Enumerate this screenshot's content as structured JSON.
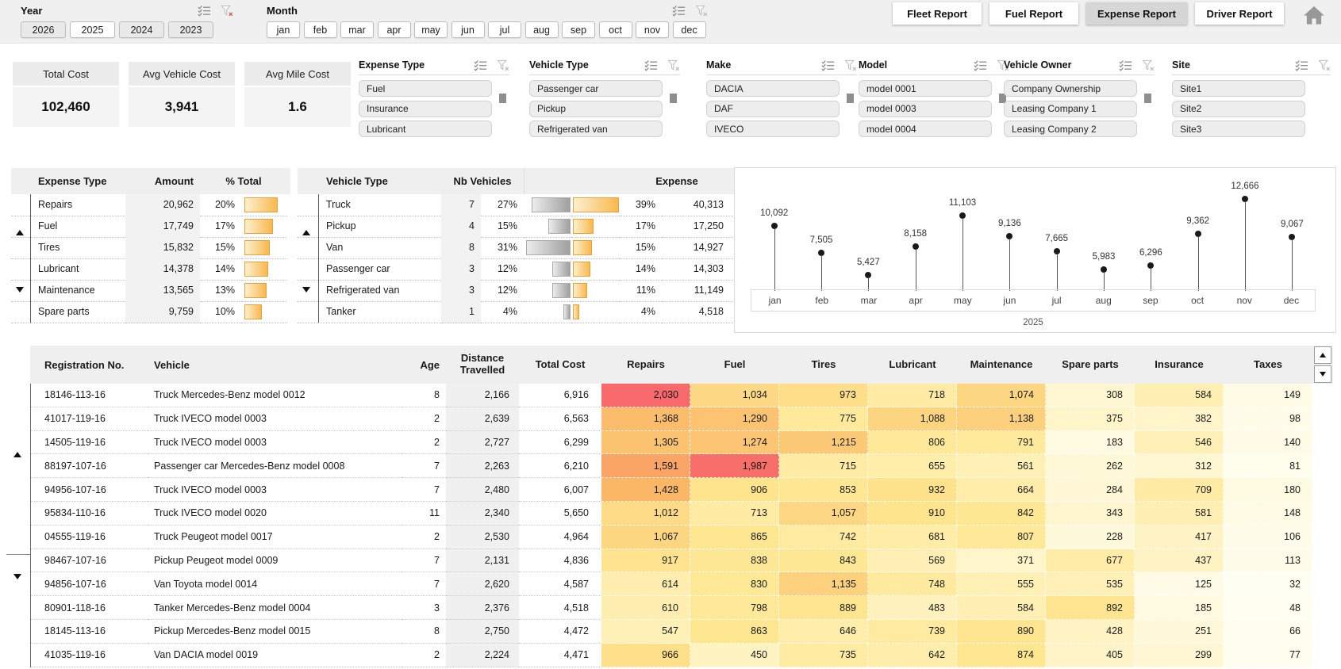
{
  "topbar": {
    "year": {
      "label": "Year",
      "options": [
        {
          "label": "2026",
          "selected": false
        },
        {
          "label": "2025",
          "selected": true
        },
        {
          "label": "2024",
          "selected": false
        },
        {
          "label": "2023",
          "selected": false
        }
      ]
    },
    "month": {
      "label": "Month",
      "options": [
        "jan",
        "feb",
        "mar",
        "apr",
        "may",
        "jun",
        "jul",
        "aug",
        "sep",
        "oct",
        "nov",
        "dec"
      ]
    },
    "tabs": [
      {
        "label": "Fleet Report",
        "active": false
      },
      {
        "label": "Fuel Report",
        "active": false
      },
      {
        "label": "Expense Report",
        "active": true
      },
      {
        "label": "Driver Report",
        "active": false
      }
    ]
  },
  "kpis": [
    {
      "title": "Total Cost",
      "value": "102,460"
    },
    {
      "title": "Avg Vehicle Cost",
      "value": "3,941"
    },
    {
      "title": "Avg Mile Cost",
      "value": "1.6"
    }
  ],
  "slicers": [
    {
      "title": "Expense Type",
      "items": [
        "Fuel",
        "Insurance",
        "Lubricant"
      ]
    },
    {
      "title": "Vehicle Type",
      "items": [
        "Passenger car",
        "Pickup",
        "Refrigerated van"
      ]
    },
    {
      "title": "Make",
      "items": [
        "DACIA",
        "DAF",
        "IVECO"
      ]
    },
    {
      "title": "Model",
      "items": [
        "model 0001",
        "model 0003",
        "model 0004"
      ]
    },
    {
      "title": "Vehicle Owner",
      "items": [
        "Company Ownership",
        "Leasing Company 1",
        "Leasing Company 2"
      ]
    },
    {
      "title": "Site",
      "items": [
        "Site1",
        "Site2",
        "Site3"
      ]
    }
  ],
  "expense_table": {
    "headers": {
      "type": "Expense Type",
      "amount": "Amount",
      "pct": "% Total"
    },
    "rows": [
      {
        "type": "Repairs",
        "amount": "20,962",
        "pct_label": "20%",
        "pct": 20
      },
      {
        "type": "Fuel",
        "amount": "17,749",
        "pct_label": "17%",
        "pct": 17
      },
      {
        "type": "Tires",
        "amount": "15,832",
        "pct_label": "15%",
        "pct": 15
      },
      {
        "type": "Lubricant",
        "amount": "14,378",
        "pct_label": "14%",
        "pct": 14
      },
      {
        "type": "Maintenance",
        "amount": "13,565",
        "pct_label": "13%",
        "pct": 13
      },
      {
        "type": "Spare parts",
        "amount": "9,759",
        "pct_label": "10%",
        "pct": 10
      }
    ]
  },
  "vehicle_table": {
    "headers": {
      "type": "Vehicle Type",
      "nb": "Nb Vehicles",
      "expense": "Expense"
    },
    "rows": [
      {
        "type": "Truck",
        "nb": "7",
        "nb_pct_label": "27%",
        "nb_pct": 27,
        "exp_pct_label": "39%",
        "exp_pct": 39,
        "expense": "40,313"
      },
      {
        "type": "Pickup",
        "nb": "4",
        "nb_pct_label": "15%",
        "nb_pct": 15,
        "exp_pct_label": "17%",
        "exp_pct": 17,
        "expense": "17,250"
      },
      {
        "type": "Van",
        "nb": "8",
        "nb_pct_label": "31%",
        "nb_pct": 31,
        "exp_pct_label": "15%",
        "exp_pct": 15,
        "expense": "14,927"
      },
      {
        "type": "Passenger car",
        "nb": "3",
        "nb_pct_label": "12%",
        "nb_pct": 12,
        "exp_pct_label": "14%",
        "exp_pct": 14,
        "expense": "14,303"
      },
      {
        "type": "Refrigerated van",
        "nb": "3",
        "nb_pct_label": "12%",
        "nb_pct": 12,
        "exp_pct_label": "11%",
        "exp_pct": 11,
        "expense": "11,149"
      },
      {
        "type": "Tanker",
        "nb": "1",
        "nb_pct_label": "4%",
        "nb_pct": 4,
        "exp_pct_label": "4%",
        "exp_pct": 4,
        "expense": "4,518"
      }
    ]
  },
  "chart_data": {
    "type": "scatter",
    "style": "lollipop",
    "title": "",
    "categories": [
      "jan",
      "feb",
      "mar",
      "apr",
      "may",
      "jun",
      "jul",
      "aug",
      "sep",
      "oct",
      "nov",
      "dec"
    ],
    "values": [
      10092,
      7505,
      5427,
      8158,
      11103,
      9136,
      7665,
      5983,
      6296,
      9362,
      12666,
      9067
    ],
    "labels": [
      "10,092",
      "7,505",
      "5,427",
      "8,158",
      "11,103",
      "9,136",
      "7,665",
      "5,983",
      "6,296",
      "9,362",
      "12,666",
      "9,067"
    ],
    "x_group_label": "2025",
    "xlabel": "2025",
    "ylabel": "",
    "legend": "none",
    "grid": false
  },
  "main_table": {
    "headers": {
      "reg": "Registration No.",
      "vehicle": "Vehicle",
      "age": "Age",
      "distance": "Distance Travelled",
      "total": "Total Cost",
      "heat": [
        "Repairs",
        "Fuel",
        "Tires",
        "Lubricant",
        "Maintenance",
        "Spare parts",
        "Insurance",
        "Taxes"
      ]
    },
    "rows": [
      {
        "reg": "18146-113-16",
        "vehicle": "Truck Mercedes-Benz model 0012",
        "age": "8",
        "distance": "2,166",
        "total": "6,916",
        "heat": [
          "2,030",
          "1,034",
          "973",
          "718",
          "1,074",
          "308",
          "584",
          "149"
        ]
      },
      {
        "reg": "41017-119-16",
        "vehicle": "Truck IVECO model 0003",
        "age": "2",
        "distance": "2,639",
        "total": "6,563",
        "heat": [
          "1,368",
          "1,290",
          "775",
          "1,088",
          "1,138",
          "375",
          "382",
          "98"
        ]
      },
      {
        "reg": "14505-119-16",
        "vehicle": "Truck IVECO model 0003",
        "age": "2",
        "distance": "2,727",
        "total": "6,299",
        "heat": [
          "1,305",
          "1,274",
          "1,215",
          "806",
          "791",
          "183",
          "546",
          "140"
        ]
      },
      {
        "reg": "88197-107-16",
        "vehicle": "Passenger car Mercedes-Benz model 0008",
        "age": "7",
        "distance": "2,263",
        "total": "6,210",
        "heat": [
          "1,591",
          "1,987",
          "715",
          "655",
          "561",
          "262",
          "312",
          "81"
        ]
      },
      {
        "reg": "94956-107-16",
        "vehicle": "Truck IVECO model 0003",
        "age": "7",
        "distance": "2,480",
        "total": "6,007",
        "heat": [
          "1,428",
          "906",
          "853",
          "932",
          "664",
          "284",
          "709",
          "180"
        ]
      },
      {
        "reg": "95834-110-16",
        "vehicle": "Truck IVECO model 0020",
        "age": "11",
        "distance": "2,340",
        "total": "5,650",
        "heat": [
          "1,012",
          "713",
          "1,057",
          "910",
          "842",
          "343",
          "581",
          "148"
        ]
      },
      {
        "reg": "04555-119-16",
        "vehicle": "Truck Peugeot model 0017",
        "age": "2",
        "distance": "2,530",
        "total": "4,964",
        "heat": [
          "1,067",
          "865",
          "742",
          "681",
          "807",
          "228",
          "417",
          "106"
        ]
      },
      {
        "reg": "98467-107-16",
        "vehicle": "Pickup Peugeot model 0009",
        "age": "7",
        "distance": "2,131",
        "total": "4,836",
        "heat": [
          "917",
          "838",
          "843",
          "569",
          "371",
          "677",
          "437",
          "113"
        ]
      },
      {
        "reg": "94856-107-16",
        "vehicle": "Van Toyota model 0014",
        "age": "7",
        "distance": "2,620",
        "total": "4,587",
        "heat": [
          "614",
          "830",
          "1,135",
          "748",
          "555",
          "535",
          "125",
          "32"
        ]
      },
      {
        "reg": "80901-118-16",
        "vehicle": "Tanker Mercedes-Benz model 0004",
        "age": "3",
        "distance": "2,376",
        "total": "4,518",
        "heat": [
          "610",
          "798",
          "889",
          "483",
          "584",
          "892",
          "185",
          "48"
        ]
      },
      {
        "reg": "18145-113-16",
        "vehicle": "Pickup Mercedes-Benz model 0015",
        "age": "8",
        "distance": "2,750",
        "total": "4,472",
        "heat": [
          "547",
          "863",
          "646",
          "739",
          "890",
          "428",
          "251",
          "66"
        ]
      },
      {
        "reg": "41035-119-16",
        "vehicle": "Van DACIA model 0019",
        "age": "2",
        "distance": "2,224",
        "total": "4,471",
        "heat": [
          "966",
          "450",
          "735",
          "642",
          "874",
          "405",
          "299",
          "77"
        ]
      }
    ]
  },
  "colors": {
    "heat_scale_low": "#FFFEF2",
    "heat_scale_mid": "#FFE791",
    "heat_scale_high": "#FAB464",
    "heat_scale_max": "#F8696B",
    "bar_orange": "#F5A623",
    "bar_gray": "#ABABAB",
    "tab_active_bg": "#D6D6D6",
    "filter_active_x": "#D9534F",
    "dot_color": "#1A1A1A"
  }
}
